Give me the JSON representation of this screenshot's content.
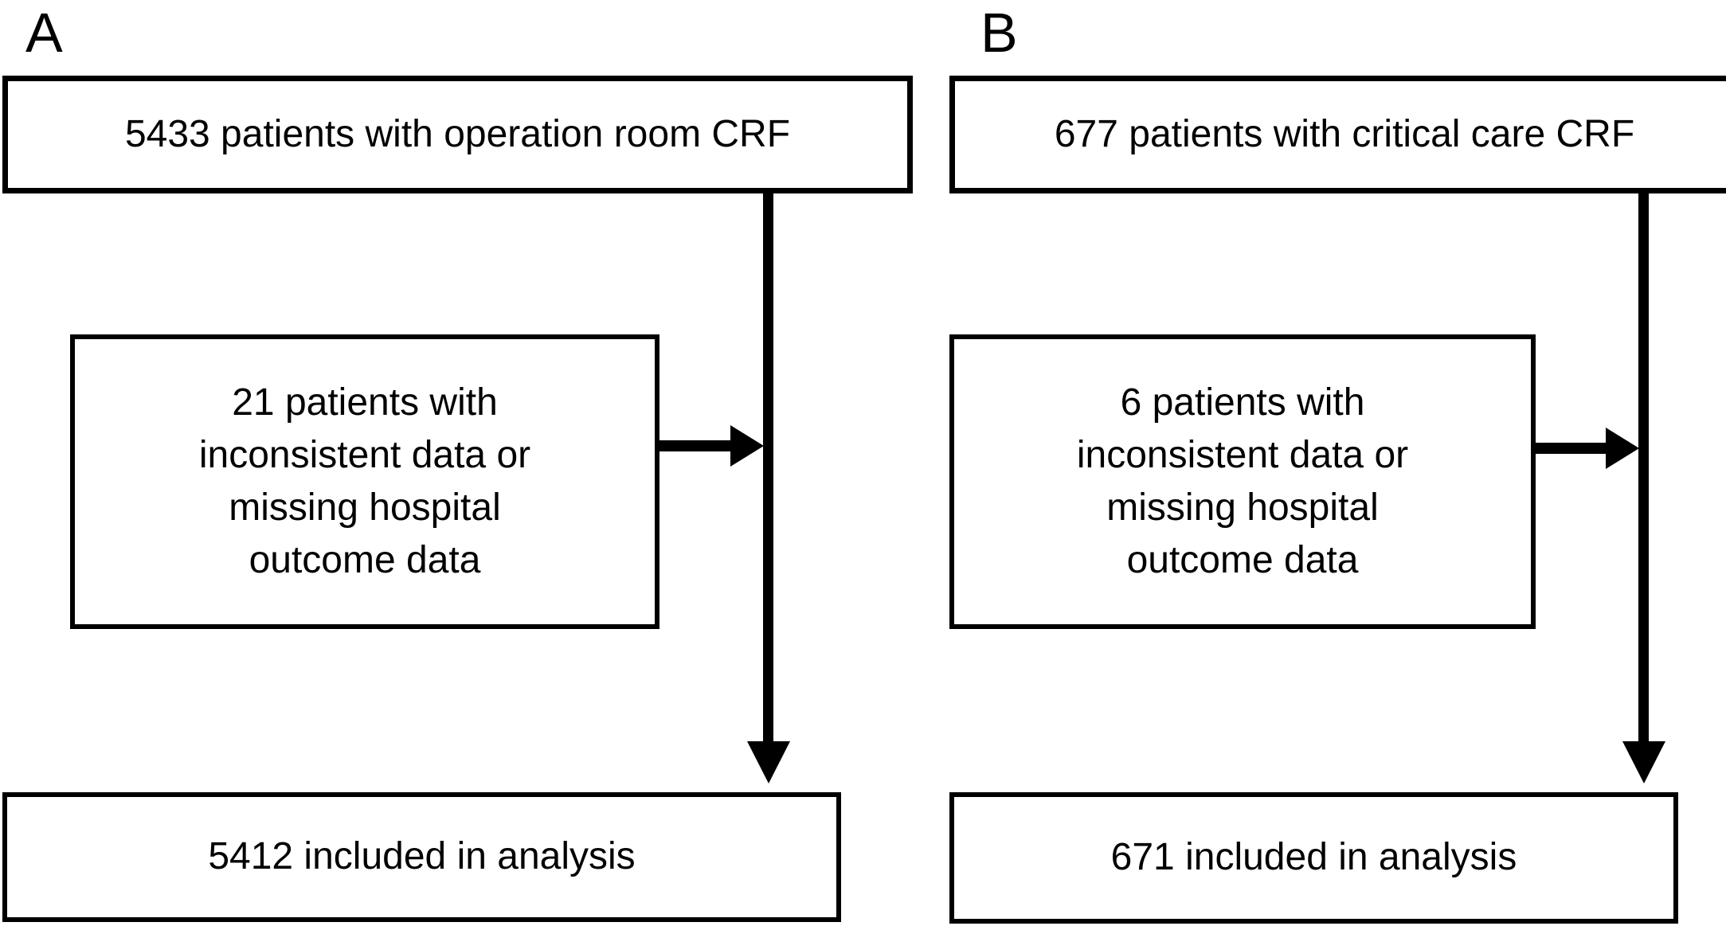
{
  "figure": {
    "background": "#ffffff",
    "line_color": "#000000",
    "panels": [
      {
        "label": "A",
        "top_box": "5433 patients with operation room CRF",
        "exclusion_box": "21 patients with\ninconsistent data or\nmissing hospital\noutcome data",
        "result_box": "5412 included in analysis"
      },
      {
        "label": "B",
        "top_box": "677 patients with critical care CRF",
        "exclusion_box": "6 patients with\ninconsistent data or\nmissing hospital\noutcome data",
        "result_box": "671 included in analysis"
      }
    ]
  }
}
